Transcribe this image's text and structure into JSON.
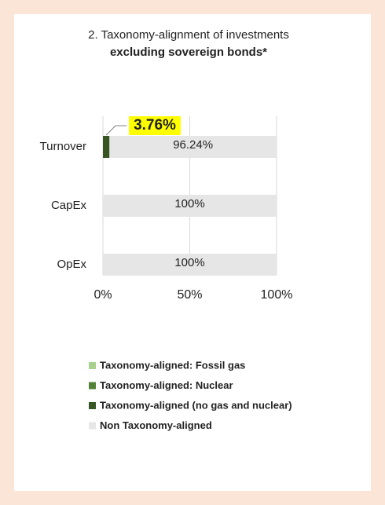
{
  "chart_data": {
    "type": "stacked-barh",
    "title": "2. Taxonomy-alignment of investments",
    "subtitle": "excluding sovereign bonds*",
    "categories": [
      "Turnover",
      "CapEx",
      "OpEx"
    ],
    "series": [
      {
        "name": "Taxonomy-aligned: Fossil gas",
        "color": "#a9d18e",
        "values": [
          0,
          0,
          0
        ],
        "value_labels": [
          null,
          null,
          null
        ]
      },
      {
        "name": "Taxonomy-aligned: Nuclear",
        "color": "#548235",
        "values": [
          0,
          0,
          0
        ],
        "value_labels": [
          null,
          null,
          null
        ]
      },
      {
        "name": "Taxonomy-aligned (no gas and nuclear)",
        "color": "#375623",
        "values": [
          3.76,
          0,
          0
        ],
        "value_labels": [
          "3.76%",
          null,
          null
        ]
      },
      {
        "name": "Non Taxonomy-aligned",
        "color": "#e7e6e6",
        "values": [
          96.24,
          100,
          100
        ],
        "value_labels": [
          "96.24%",
          "100%",
          "100%"
        ]
      }
    ],
    "xlim": [
      0,
      100
    ],
    "xticks": [
      {
        "value": 0,
        "label": "0%"
      },
      {
        "value": 50,
        "label": "50%"
      },
      {
        "value": 100,
        "label": "100%"
      }
    ],
    "grid": true
  }
}
